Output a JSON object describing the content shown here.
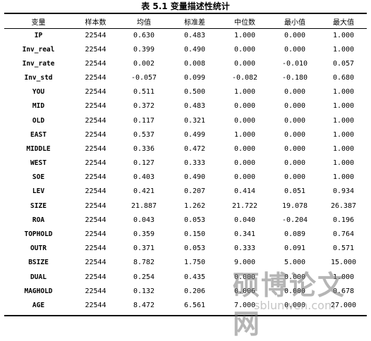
{
  "title": "表 5.1   变量描述性统计",
  "columns": [
    "变量",
    "样本数",
    "均值",
    "标准差",
    "中位数",
    "最小值",
    "最大值"
  ],
  "rows": [
    [
      "IP",
      "22544",
      "0.630",
      "0.483",
      "1.000",
      "0.000",
      "1.000"
    ],
    [
      "Inv_real",
      "22544",
      "0.399",
      "0.490",
      "0.000",
      "0.000",
      "1.000"
    ],
    [
      "Inv_rate",
      "22544",
      "0.002",
      "0.008",
      "0.000",
      "-0.010",
      "0.057"
    ],
    [
      "Inv_std",
      "22544",
      "-0.057",
      "0.099",
      "-0.082",
      "-0.180",
      "0.680"
    ],
    [
      "YOU",
      "22544",
      "0.511",
      "0.500",
      "1.000",
      "0.000",
      "1.000"
    ],
    [
      "MID",
      "22544",
      "0.372",
      "0.483",
      "0.000",
      "0.000",
      "1.000"
    ],
    [
      "OLD",
      "22544",
      "0.117",
      "0.321",
      "0.000",
      "0.000",
      "1.000"
    ],
    [
      "EAST",
      "22544",
      "0.537",
      "0.499",
      "1.000",
      "0.000",
      "1.000"
    ],
    [
      "MIDDLE",
      "22544",
      "0.336",
      "0.472",
      "0.000",
      "0.000",
      "1.000"
    ],
    [
      "WEST",
      "22544",
      "0.127",
      "0.333",
      "0.000",
      "0.000",
      "1.000"
    ],
    [
      "SOE",
      "22544",
      "0.403",
      "0.490",
      "0.000",
      "0.000",
      "1.000"
    ],
    [
      "LEV",
      "22544",
      "0.421",
      "0.207",
      "0.414",
      "0.051",
      "0.934"
    ],
    [
      "SIZE",
      "22544",
      "21.887",
      "1.262",
      "21.722",
      "19.078",
      "26.387"
    ],
    [
      "ROA",
      "22544",
      "0.043",
      "0.053",
      "0.040",
      "-0.204",
      "0.196"
    ],
    [
      "TOPHOLD",
      "22544",
      "0.359",
      "0.150",
      "0.341",
      "0.089",
      "0.764"
    ],
    [
      "OUTR",
      "22544",
      "0.371",
      "0.053",
      "0.333",
      "0.091",
      "0.571"
    ],
    [
      "BSIZE",
      "22544",
      "8.782",
      "1.750",
      "9.000",
      "5.000",
      "15.000"
    ],
    [
      "DUAL",
      "22544",
      "0.254",
      "0.435",
      "0.000",
      "0.000",
      "1.000"
    ],
    [
      "MAGHOLD",
      "22544",
      "0.132",
      "0.206",
      "0.006",
      "0.000",
      "0.678"
    ],
    [
      "AGE",
      "22544",
      "8.472",
      "6.561",
      "7.000",
      "0.000",
      "27.000"
    ]
  ],
  "watermark": {
    "text": "硕博论文网",
    "url": "sblunwen.com"
  }
}
